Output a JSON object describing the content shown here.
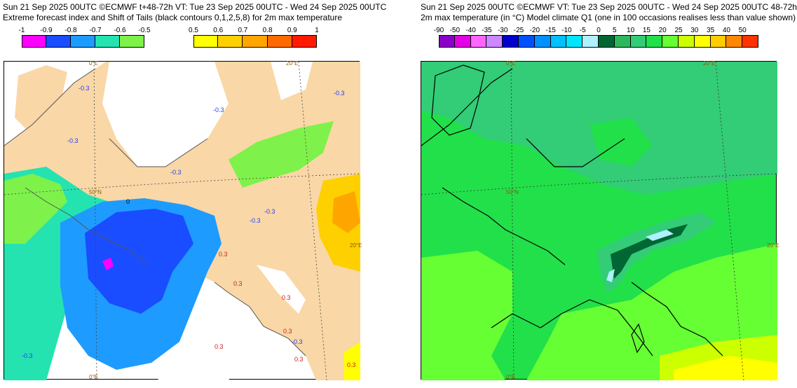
{
  "left": {
    "title_line1": "Sun 21 Sep 2025 00UTC ©ECMWF t+48-72h  VT: Tue 23 Sep 2025 00UTC - Wed 24 Sep 2025 00UTC",
    "title_line2": "Extreme forecast index and Shift of Tails (black contours 0,1,2,5,8) for 2m max temperature",
    "legend_neg": {
      "labels": [
        "-1",
        "-0.9",
        "-0.8",
        "-0.7",
        "-0.6",
        "-0.5"
      ],
      "colors": [
        "#ff00ff",
        "#1a4dff",
        "#1e9bff",
        "#24e3b0",
        "#7ef24a"
      ]
    },
    "legend_pos": {
      "labels": [
        "0.5",
        "0.6",
        "0.7",
        "0.8",
        "0.9",
        "1"
      ],
      "colors": [
        "#ffff00",
        "#ffd000",
        "#ffa500",
        "#ff6a00",
        "#ff1a00"
      ]
    },
    "lon_labels": [
      "0°E",
      "20°E",
      "20°E",
      "0°E"
    ],
    "lat_label": "50°N",
    "contour_labels": [
      "-0.3",
      "-0.3",
      "-0.3",
      "-0.3",
      "-0.3",
      "0.3",
      "-0.3",
      "-0.3",
      "0.3",
      "-0.3",
      "0.3",
      "0.3",
      "-0.3",
      "0.3",
      "0.3",
      "0.3",
      "0"
    ],
    "colors": {
      "land": "#f9d7a6",
      "sea": "#ffffff"
    }
  },
  "right": {
    "title_line1": "Sun 21 Sep 2025 00UTC ©ECMWF VT: Tue 23 Sep 2025 00UTC - Wed 24 Sep 2025 00UTC   48-72h",
    "title_line2": "2m max temperature (in °C)  Model climate Q1 (one in 100 occasions realises less than value shown)",
    "legend": {
      "labels": [
        "-90",
        "-50",
        "-40",
        "-35",
        "-30",
        "-25",
        "-20",
        "-15",
        "-10",
        "-5",
        "0",
        "5",
        "10",
        "15",
        "20",
        "25",
        "30",
        "35",
        "40",
        "50"
      ],
      "colors": [
        "#8a00c8",
        "#e600e6",
        "#ff66ff",
        "#cc88ff",
        "#0000cc",
        "#0050ff",
        "#0090ff",
        "#00c0ff",
        "#00e6ff",
        "#b0f0ff",
        "#006633",
        "#2eb85c",
        "#33cc77",
        "#22e04a",
        "#66ff33",
        "#ccff00",
        "#ffff00",
        "#ffcc00",
        "#ff8800",
        "#ff3300"
      ]
    },
    "lon_labels": [
      "0°E",
      "20°E",
      "20°E",
      "0°E"
    ],
    "lat_label": "50°N"
  }
}
